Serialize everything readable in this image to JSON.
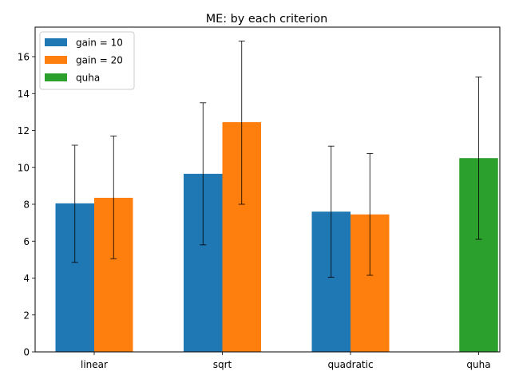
{
  "chart_data": {
    "type": "bar",
    "title": "ME: by each criterion",
    "xlabel": "",
    "ylabel": "",
    "categories": [
      "linear",
      "sqrt",
      "quadratic",
      "quha"
    ],
    "yticks": [
      0,
      2,
      4,
      6,
      8,
      10,
      12,
      14,
      16
    ],
    "ylim": [
      0,
      17.6
    ],
    "grid": false,
    "legend_position": "top-left",
    "series": [
      {
        "name": "gain = 10",
        "color": "#1f77b4",
        "values": [
          8.05,
          9.65,
          7.6,
          null
        ],
        "err_low": [
          4.85,
          5.8,
          4.05,
          null
        ],
        "err_high": [
          11.2,
          13.5,
          11.15,
          null
        ]
      },
      {
        "name": "gain = 20",
        "color": "#ff7f0e",
        "values": [
          8.35,
          12.45,
          7.45,
          null
        ],
        "err_low": [
          5.05,
          8.0,
          4.15,
          null
        ],
        "err_high": [
          11.7,
          16.85,
          10.75,
          null
        ]
      },
      {
        "name": "quha",
        "color": "#2ca02c",
        "values": [
          null,
          null,
          null,
          10.5
        ],
        "err_low": [
          null,
          null,
          null,
          6.1
        ],
        "err_high": [
          null,
          null,
          null,
          14.9
        ]
      }
    ]
  }
}
